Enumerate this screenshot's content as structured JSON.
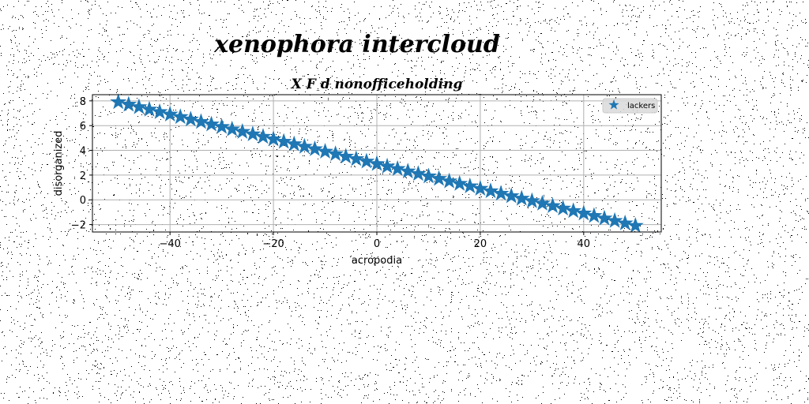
{
  "figure": {
    "suptitle": "xenophora intercloud",
    "background": "#ffffff",
    "noise_color": "#000000"
  },
  "chart_data": {
    "type": "scatter",
    "title": "X F d nonofficeholding",
    "xlabel": "acropodia",
    "ylabel": "disorganized",
    "xlim": [
      -55,
      55
    ],
    "ylim": [
      -2.6,
      8.5
    ],
    "xticks": [
      -40,
      -20,
      0,
      20,
      40
    ],
    "xtick_labels": [
      "−40",
      "−20",
      "0",
      "20",
      "40"
    ],
    "yticks": [
      -2,
      0,
      2,
      4,
      6,
      8
    ],
    "ytick_labels": [
      "−2",
      "0",
      "2",
      "4",
      "6",
      "8"
    ],
    "grid": true,
    "legend_position": "top-right",
    "series": [
      {
        "name": "lackers",
        "marker": "star",
        "color": "#1f77b4",
        "x": [
          -50,
          -48,
          -46,
          -44,
          -42,
          -40,
          -38,
          -36,
          -34,
          -32,
          -30,
          -28,
          -26,
          -24,
          -22,
          -20,
          -18,
          -16,
          -14,
          -12,
          -10,
          -8,
          -6,
          -4,
          -2,
          0,
          2,
          4,
          6,
          8,
          10,
          12,
          14,
          16,
          18,
          20,
          22,
          24,
          26,
          28,
          30,
          32,
          34,
          36,
          38,
          40,
          42,
          44,
          46,
          48,
          50
        ],
        "y": [
          7.9,
          7.7,
          7.5,
          7.3,
          7.1,
          6.9,
          6.7,
          6.5,
          6.3,
          6.1,
          5.9,
          5.7,
          5.5,
          5.3,
          5.1,
          4.9,
          4.7,
          4.5,
          4.3,
          4.1,
          3.9,
          3.7,
          3.5,
          3.3,
          3.1,
          2.9,
          2.7,
          2.5,
          2.3,
          2.1,
          1.9,
          1.7,
          1.5,
          1.3,
          1.1,
          0.9,
          0.7,
          0.5,
          0.3,
          0.1,
          -0.1,
          -0.3,
          -0.5,
          -0.7,
          -0.9,
          -1.1,
          -1.3,
          -1.5,
          -1.7,
          -1.9,
          -2.1
        ]
      }
    ]
  }
}
